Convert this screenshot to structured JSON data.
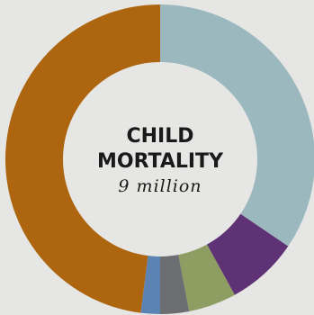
{
  "chart_data": {
    "type": "pie",
    "title_lines": [
      "CHILD",
      "MORTALITY"
    ],
    "subtitle": "9 million",
    "slices": [
      {
        "value": 34.5,
        "color": "#9ab8be"
      },
      {
        "value": 7.5,
        "color": "#5e3275"
      },
      {
        "value": 5.0,
        "color": "#8e9d62"
      },
      {
        "value": 3.0,
        "color": "#6c6e72"
      },
      {
        "value": 2.0,
        "color": "#5b84b5"
      },
      {
        "value": 48.0,
        "color": "#ad660f"
      }
    ],
    "background_color": "#e6e6e4",
    "center_color": "#e6e6e4"
  }
}
